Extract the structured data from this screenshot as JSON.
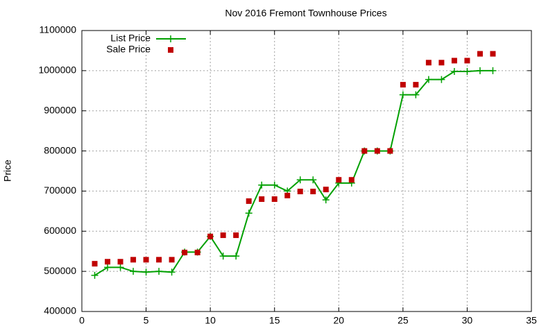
{
  "chart_data": {
    "type": "line",
    "title": "Nov 2016 Fremont Townhouse Prices",
    "y_label": "Price",
    "x": [
      1,
      2,
      3,
      4,
      5,
      6,
      7,
      8,
      9,
      10,
      11,
      12,
      13,
      14,
      15,
      16,
      17,
      18,
      19,
      20,
      21,
      22,
      23,
      24,
      25,
      26,
      27,
      28,
      29,
      30,
      31,
      32
    ],
    "series": [
      {
        "name": "List Price",
        "color": "#00a000",
        "mode": "linespoints",
        "values": [
          490000,
          510000,
          510000,
          500000,
          498000,
          500000,
          498000,
          548000,
          548000,
          587000,
          538000,
          538000,
          645000,
          715000,
          715000,
          700000,
          728000,
          728000,
          678000,
          720000,
          720000,
          800000,
          800000,
          800000,
          940000,
          940000,
          978000,
          978000,
          998000,
          998000,
          1000000,
          1000000
        ]
      },
      {
        "name": "Sale Price",
        "color": "#c00000",
        "mode": "points",
        "values": [
          519000,
          524000,
          524000,
          529000,
          529000,
          529000,
          529000,
          547000,
          547000,
          587000,
          590000,
          590000,
          675000,
          680000,
          680000,
          689000,
          699000,
          699000,
          704000,
          728000,
          728000,
          800000,
          800000,
          800000,
          965000,
          965000,
          1020000,
          1020000,
          1025000,
          1025000,
          1042000,
          1042000
        ]
      }
    ],
    "xlim": [
      0,
      35
    ],
    "xticks": [
      0,
      5,
      10,
      15,
      20,
      25,
      30,
      35
    ],
    "ylim": [
      400000,
      1100000
    ],
    "yticks": [
      400000,
      500000,
      600000,
      700000,
      800000,
      900000,
      1000000,
      1100000
    ],
    "grid": true,
    "legend": "top-left"
  }
}
